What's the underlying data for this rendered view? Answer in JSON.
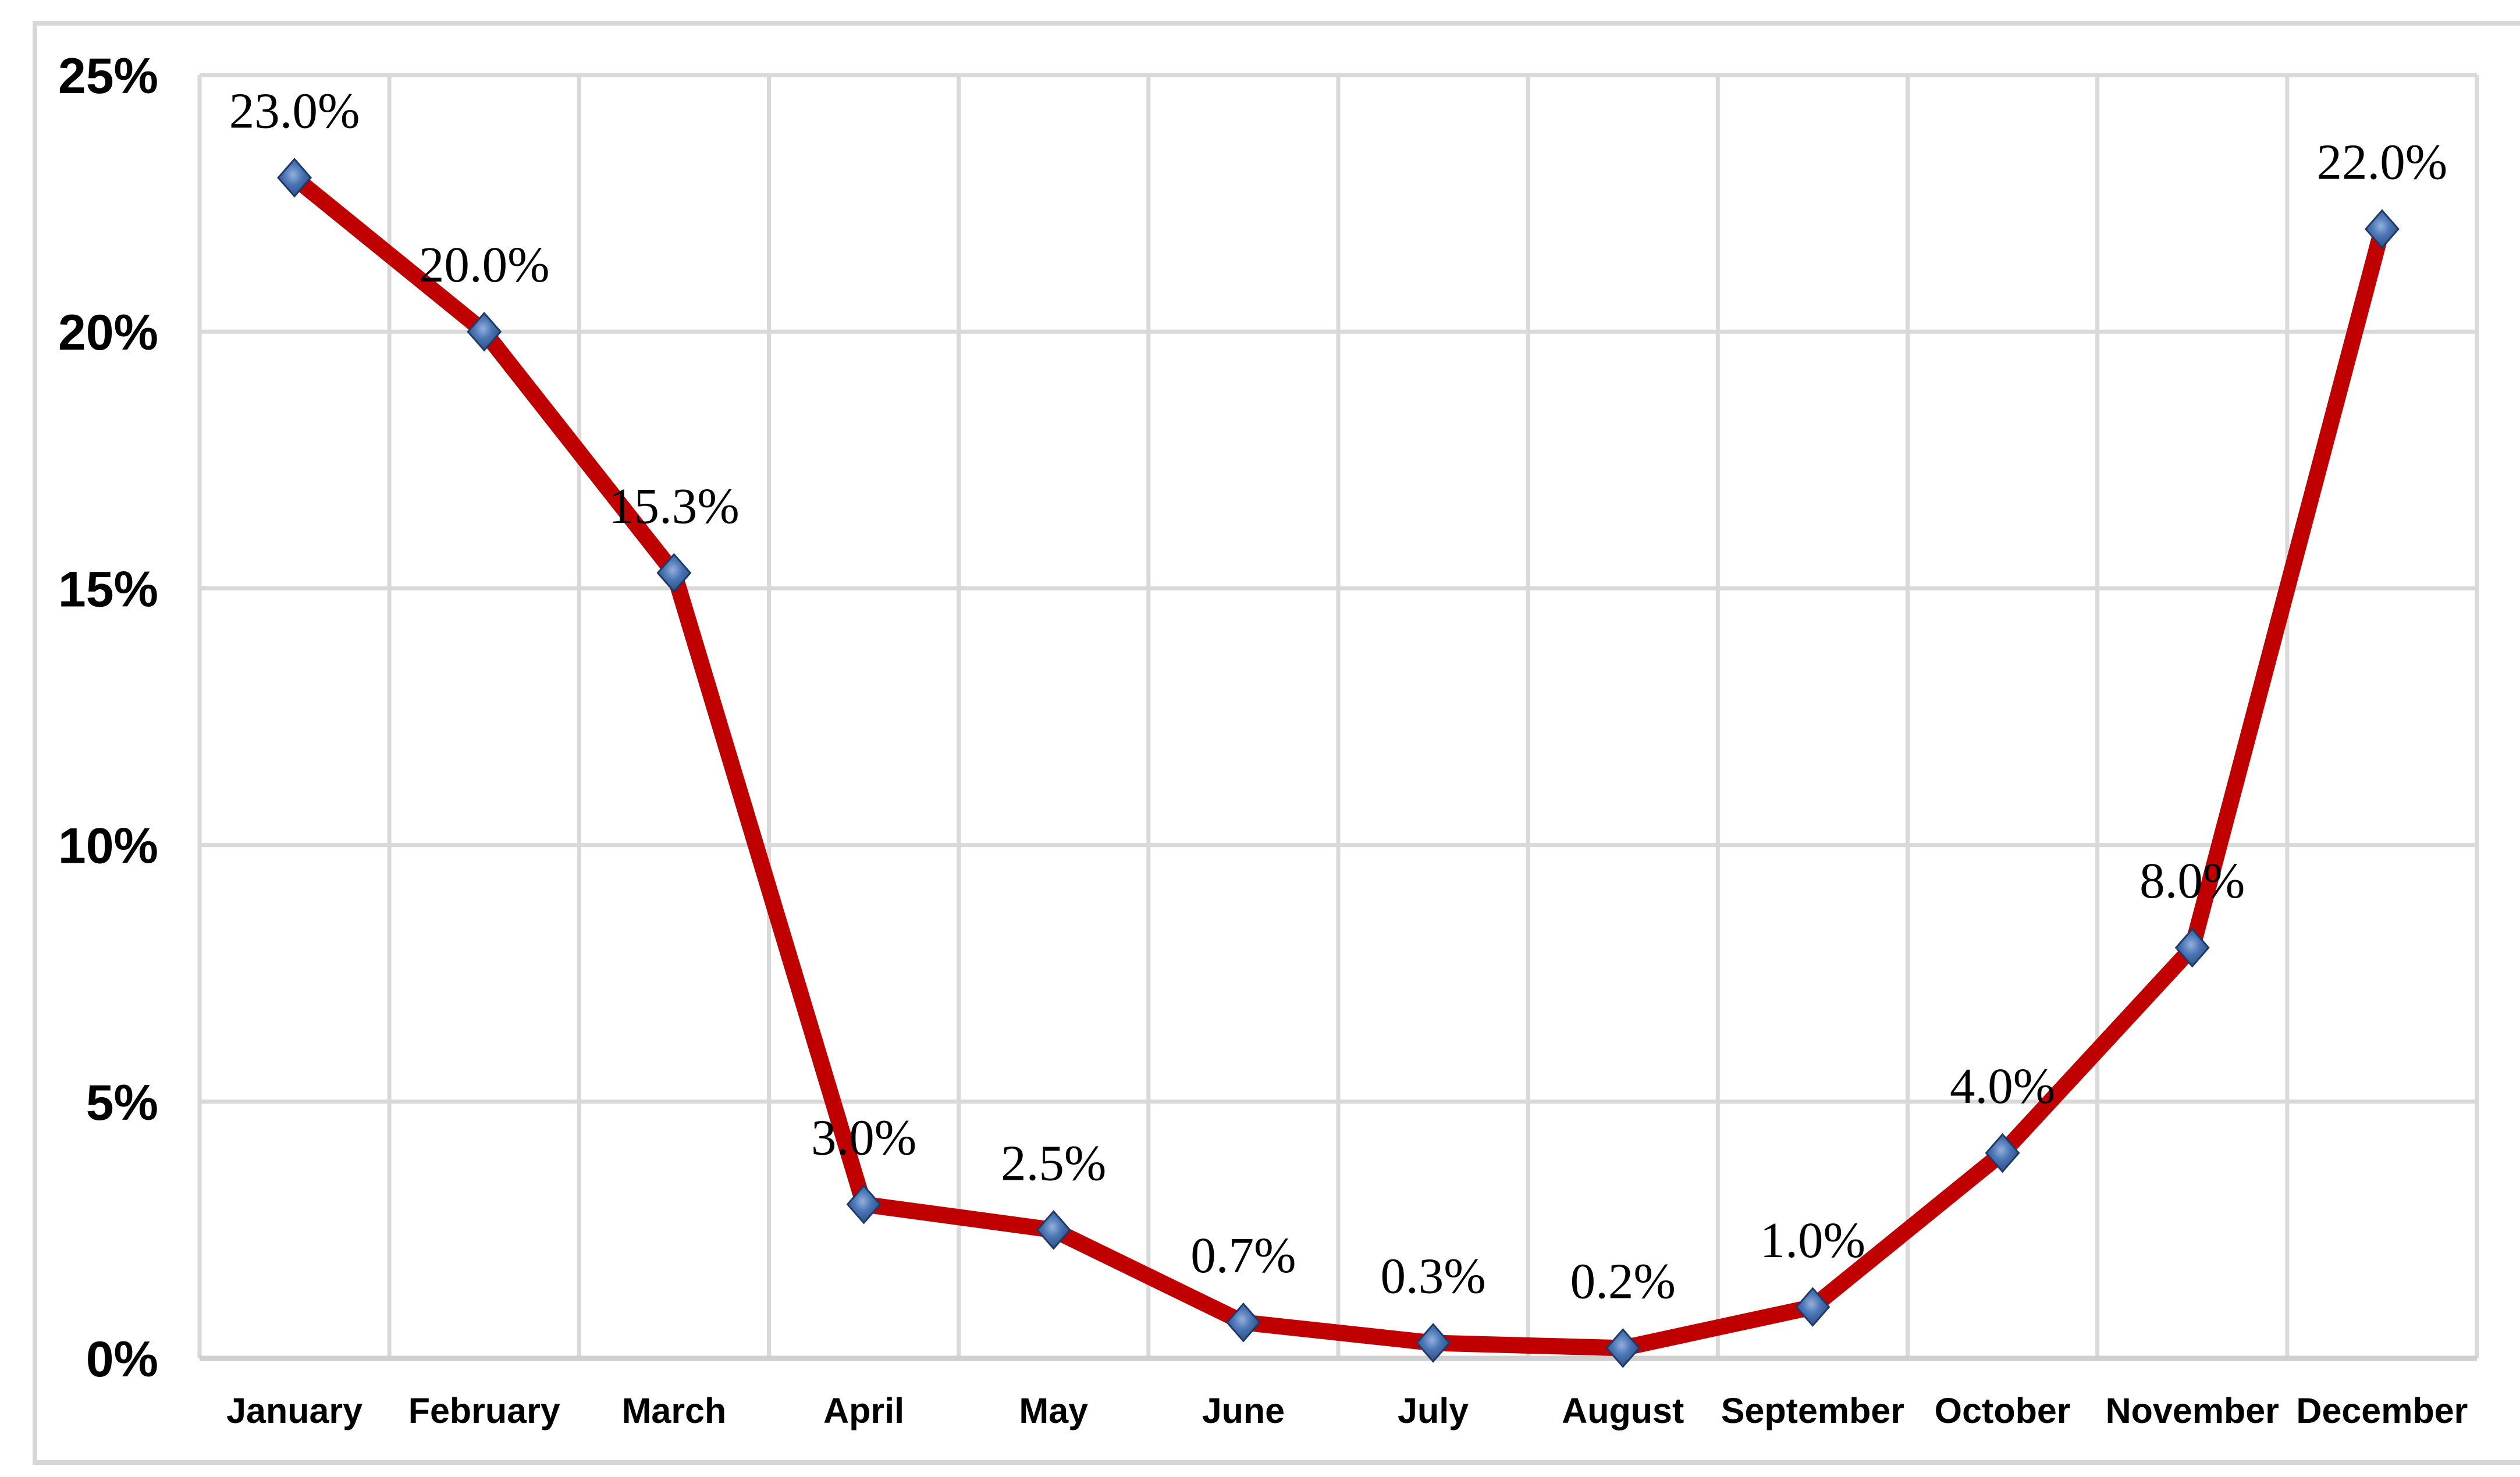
{
  "chart_data": {
    "type": "line",
    "title": "",
    "categories": [
      "January",
      "February",
      "March",
      "April",
      "May",
      "June",
      "July",
      "August",
      "September",
      "October",
      "November",
      "December"
    ],
    "series": [
      {
        "name": "monthly-percentage",
        "values": [
          23.0,
          20.0,
          15.3,
          3.0,
          2.5,
          0.7,
          0.3,
          0.2,
          1.0,
          4.0,
          8.0,
          22.0
        ],
        "data_labels": [
          "23.0%",
          "20.0%",
          "15.3%",
          "3.0%",
          "2.5%",
          "0.7%",
          "0.3%",
          "0.2%",
          "1.0%",
          "4.0%",
          "8.0%",
          "22.0%"
        ]
      }
    ],
    "xlabel": "",
    "ylabel": "",
    "ylim": [
      0,
      25
    ],
    "y_ticks": [
      {
        "value": 0,
        "label": "0%"
      },
      {
        "value": 5,
        "label": "5%"
      },
      {
        "value": 10,
        "label": "10%"
      },
      {
        "value": 15,
        "label": "15%"
      },
      {
        "value": 20,
        "label": "20%"
      },
      {
        "value": 25,
        "label": "25%"
      }
    ],
    "grid": "on",
    "legend_position": "none",
    "colors": {
      "line": "#C00000",
      "marker_face": "#4A74B4",
      "marker_face_light": "#93B0DC",
      "marker_face_dark": "#2A4B80",
      "marker_edge": "#1F3A64",
      "gridline": "#D9D9D9",
      "axis_line": "#CFCFCF",
      "frame_border": "#D7D7D7",
      "text": "#000000",
      "background": "#FFFFFF"
    },
    "marker_shape": "diamond"
  }
}
